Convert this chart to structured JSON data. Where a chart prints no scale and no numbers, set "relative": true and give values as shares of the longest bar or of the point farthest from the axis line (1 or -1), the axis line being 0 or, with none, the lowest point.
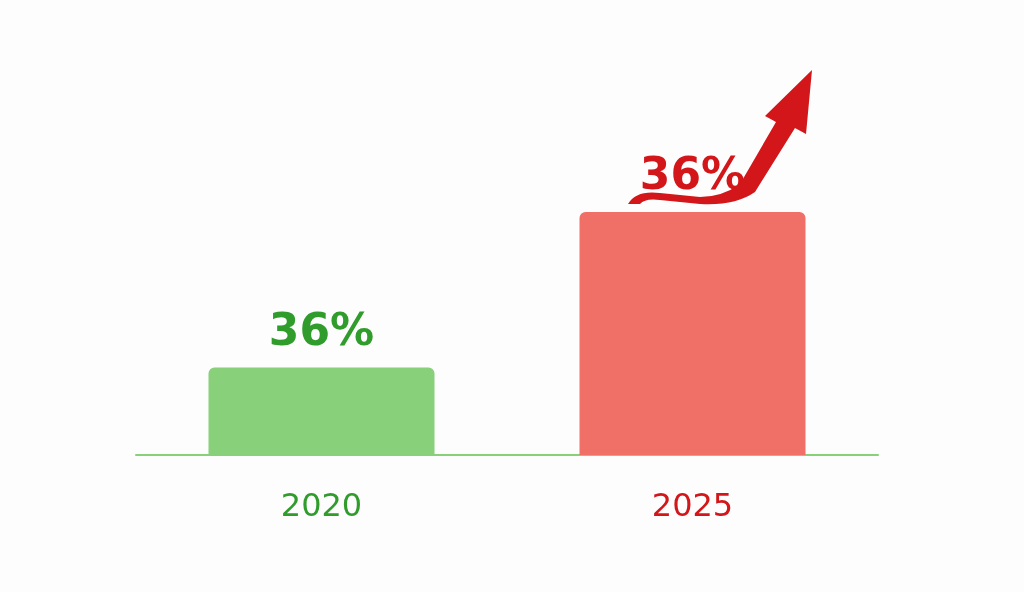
{
  "chart_data": {
    "type": "bar",
    "relative": true,
    "categories": [
      "2020",
      "2025"
    ],
    "values": [
      0.36,
      1
    ],
    "colors": [
      "#88d07a",
      "#f07068"
    ],
    "annotations": [
      "36%",
      "36%"
    ]
  }
}
